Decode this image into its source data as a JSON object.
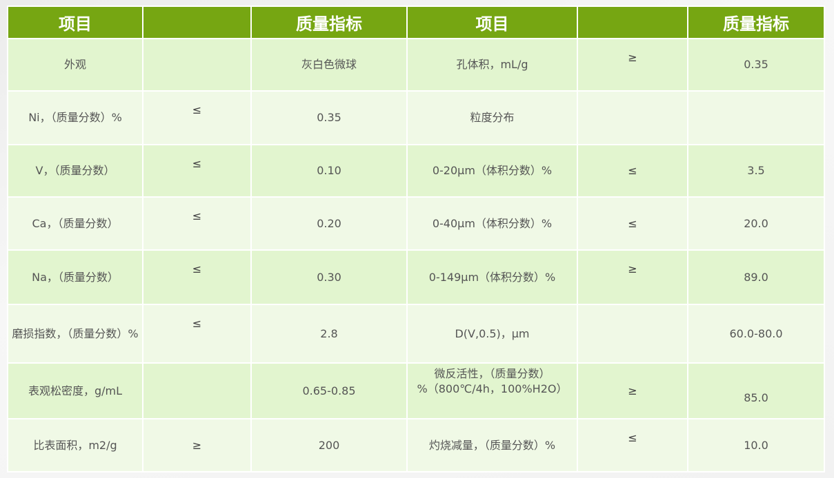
{
  "header": [
    "项目",
    "",
    "质量指标",
    "项目",
    "",
    "质量指标"
  ],
  "rows": [
    [
      "外观",
      "",
      "灰白色微球",
      "孔体积，mL/g",
      "≥",
      "0.35"
    ],
    [
      "Ni，（质量分数）%",
      "≤",
      "0.35",
      "粒度分布",
      "",
      ""
    ],
    [
      "V，（质量分数）",
      "≤",
      "0.10",
      "0-20μm（体积分数）%",
      "≤",
      "3.5"
    ],
    [
      "Ca，（质量分数）",
      "≤",
      "0.20",
      "0-40μm（体积分数）%",
      "≤",
      "20.0"
    ],
    [
      "Na，（质量分数）",
      "≤",
      "0.30",
      "0-149μm（体积分数）%",
      "≥",
      "89.0"
    ],
    [
      "磨损指数，（质量分数）%",
      "≤",
      "2.8",
      "D(V,0.5)，μm",
      "",
      "60.0-80.0"
    ],
    [
      "表观松密度，g/mL",
      "",
      "0.65-0.85",
      "微反活性，（质量分数）%（800℃/4h，100%H2O）",
      "≥",
      "85.0"
    ],
    [
      "比表面积，m2/g",
      "≥",
      "200",
      "灼烧减量，（质量分数）%",
      "≤",
      "10.0"
    ]
  ],
  "colors": {
    "header": "#76a612",
    "row_odd": "#e2f5cf",
    "row_even": "#f0f9e6"
  }
}
